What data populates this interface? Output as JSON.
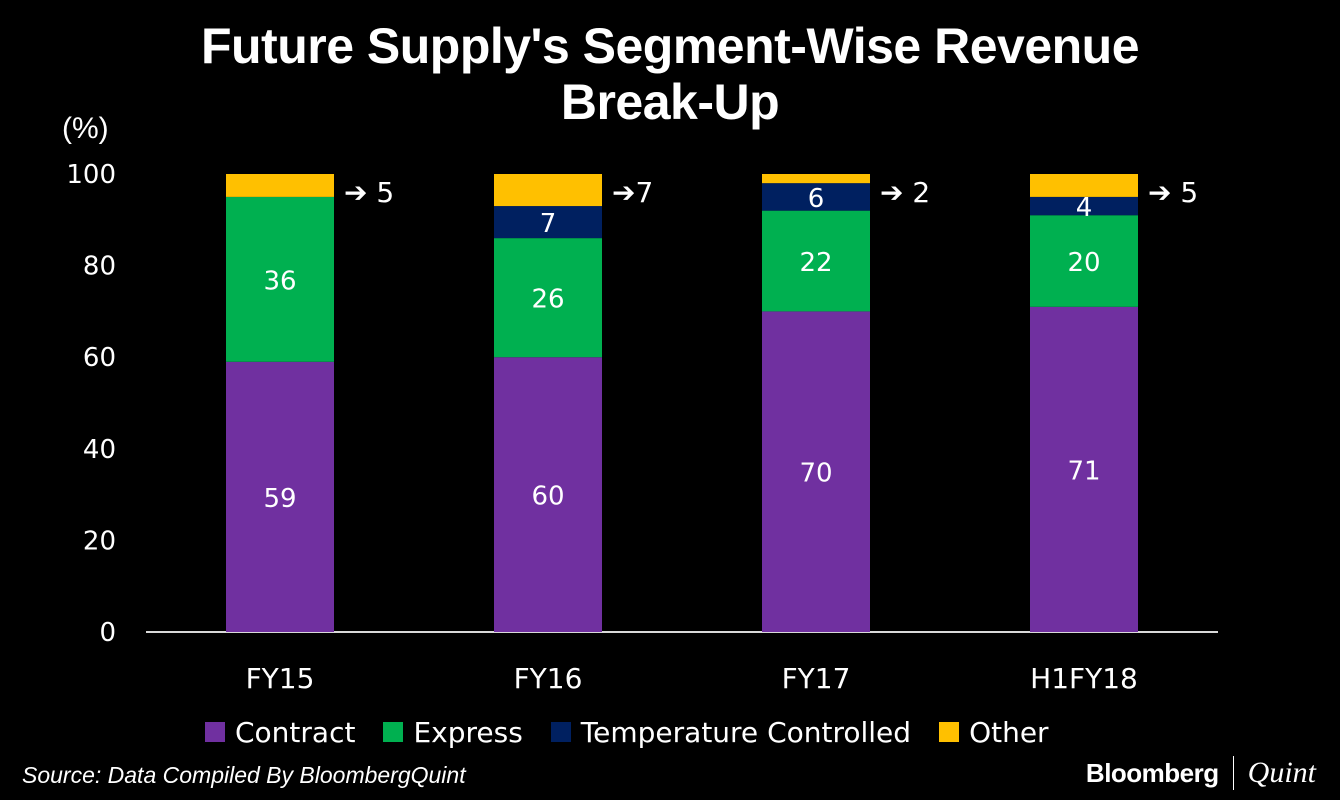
{
  "chart_data": {
    "type": "bar",
    "stacked": true,
    "title": "Future Supply's Segment-Wise Revenue Break-Up",
    "ylabel": "(%)",
    "xlabel": "",
    "ylim": [
      0,
      100
    ],
    "yticks": [
      0,
      20,
      40,
      60,
      80,
      100
    ],
    "categories": [
      "FY15",
      "FY16",
      "FY17",
      "H1FY18"
    ],
    "series": [
      {
        "name": "Contract",
        "color": "#7030a0",
        "values": [
          59,
          60,
          70,
          71
        ]
      },
      {
        "name": "Express",
        "color": "#00b050",
        "values": [
          36,
          26,
          22,
          20
        ]
      },
      {
        "name": "Temperature Controlled",
        "color": "#002060",
        "values": [
          0,
          7,
          6,
          4
        ]
      },
      {
        "name": "Other",
        "color": "#ffc000",
        "values": [
          5,
          7,
          2,
          5
        ]
      }
    ],
    "outside_labels": [
      "➔ 5",
      "➔7",
      "➔ 2",
      "➔ 5"
    ],
    "legend_position": "bottom",
    "grid": false
  },
  "source": "Source: Data Compiled By BloombergQuint",
  "brand": {
    "bloomberg": "Bloomberg",
    "quint": "Quint"
  }
}
